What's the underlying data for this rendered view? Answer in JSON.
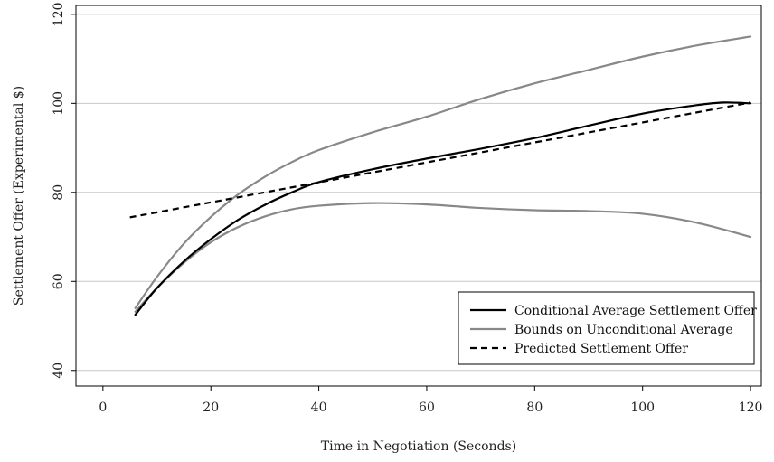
{
  "chart_data": {
    "type": "line",
    "title": "",
    "xlabel": "Time in Negotiation (Seconds)",
    "ylabel": "Settlement Offer (Experimental $)",
    "xlim": [
      -5,
      122
    ],
    "ylim": [
      36.5,
      122
    ],
    "x_ticks": [
      0,
      20,
      40,
      60,
      80,
      100,
      120
    ],
    "y_ticks": [
      40,
      60,
      80,
      100,
      120
    ],
    "grid": "horizontal",
    "legend_position": "bottom-right",
    "series": [
      {
        "name": "Conditional Average Settlement Offer",
        "color": "#000000",
        "style": "solid",
        "x": [
          6,
          10,
          15,
          20,
          25,
          30,
          35,
          40,
          50,
          60,
          70,
          80,
          90,
          100,
          110,
          115,
          120
        ],
        "y": [
          52.5,
          58.5,
          64.5,
          69.5,
          73.8,
          77.2,
          80.0,
          82.3,
          85.2,
          87.6,
          89.8,
          92.2,
          95.0,
          97.7,
          99.6,
          100.2,
          100.0
        ]
      },
      {
        "name": "Bounds on Unconditional Average",
        "color": "#888888",
        "style": "solid",
        "x": [
          6,
          10,
          15,
          20,
          25,
          30,
          35,
          40,
          50,
          60,
          70,
          80,
          90,
          100,
          110,
          120
        ],
        "y": [
          54.0,
          61.0,
          68.5,
          74.5,
          79.5,
          83.5,
          86.8,
          89.5,
          93.5,
          97.0,
          101.0,
          104.5,
          107.5,
          110.5,
          113.0,
          115.0
        ]
      },
      {
        "name": "Bounds on Unconditional Average (lower)",
        "color": "#888888",
        "style": "solid",
        "x": [
          6,
          10,
          15,
          20,
          25,
          30,
          35,
          40,
          50,
          60,
          70,
          80,
          90,
          100,
          110,
          120
        ],
        "y": [
          53.2,
          58.5,
          64.2,
          68.8,
          72.2,
          74.6,
          76.2,
          77.0,
          77.6,
          77.3,
          76.5,
          76.0,
          75.8,
          75.2,
          73.2,
          70.0
        ]
      },
      {
        "name": "Predicted Settlement Offer",
        "color": "#000000",
        "style": "dashed",
        "x": [
          5,
          120
        ],
        "y": [
          74.4,
          100.2
        ]
      }
    ],
    "legend": [
      {
        "label": "Conditional Average Settlement Offer",
        "color": "#000000",
        "style": "solid"
      },
      {
        "label": "Bounds on Unconditional Average",
        "color": "#888888",
        "style": "solid"
      },
      {
        "label": "Predicted Settlement Offer",
        "color": "#000000",
        "style": "dashed"
      }
    ]
  }
}
